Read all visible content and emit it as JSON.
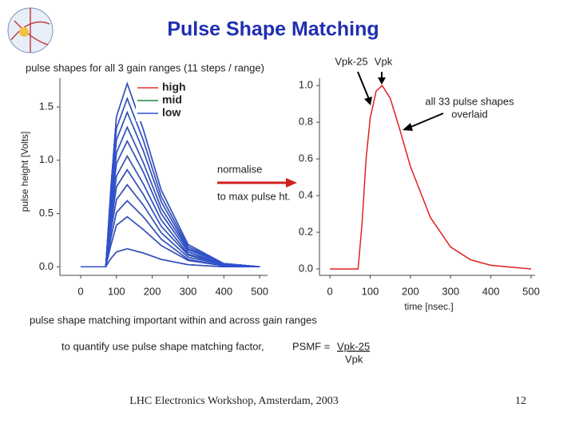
{
  "title": "Pulse Shape Matching",
  "notes": [
    "pulse shape matching important within and across gain ranges",
    "to quantify use pulse shape matching factor,"
  ],
  "psmf": {
    "label": "PSMF =",
    "numerator": "Vpk-25",
    "denominator": "Vpk"
  },
  "footer": "LHC Electronics Workshop, Amsterdam, 2003",
  "page_number": 12,
  "chart_data": [
    {
      "type": "line",
      "subtitle": "pulse shapes for all 3 gain ranges (11 steps / range)",
      "ylabel": "pulse height [Volts]",
      "annotations": [
        "normalise",
        "to max pulse ht."
      ],
      "x": [
        0,
        70,
        85,
        100,
        130,
        175,
        225,
        300,
        400,
        500
      ],
      "xlim": [
        -58,
        522
      ],
      "xticks": [
        0,
        100,
        200,
        300,
        400,
        500
      ],
      "ylim": [
        -0.08,
        1.77
      ],
      "yticks": [
        {
          "value": 0,
          "label": "0.0"
        },
        {
          "value": 0.5,
          "label": "0.5"
        },
        {
          "value": 1,
          "label": "1.0"
        },
        {
          "value": 1.5,
          "label": "1.5"
        }
      ],
      "grid": false,
      "legend": "top",
      "series": [
        {
          "name": "high",
          "color": "#e03030",
          "values": [
            [
              0,
              0,
              0.77,
              1.41,
              1.72,
              1.29,
              0.72,
              0.21,
              0.03,
              0
            ],
            [
              0,
              0,
              0.71,
              1.3,
              1.58,
              1.19,
              0.66,
              0.19,
              0.03,
              0
            ],
            [
              0,
              0,
              0.65,
              1.19,
              1.45,
              1.09,
              0.61,
              0.17,
              0.03,
              0
            ],
            [
              0,
              0,
              0.59,
              1.07,
              1.31,
              0.98,
              0.55,
              0.16,
              0.03,
              0
            ],
            [
              0,
              0,
              0.53,
              0.97,
              1.18,
              0.89,
              0.5,
              0.14,
              0.02,
              0
            ],
            [
              0,
              0,
              0.47,
              0.85,
              1.04,
              0.78,
              0.44,
              0.12,
              0.02,
              0
            ],
            [
              0,
              0,
              0.41,
              0.75,
              0.91,
              0.68,
              0.38,
              0.11,
              0.02,
              0
            ],
            [
              0,
              0,
              0.35,
              0.63,
              0.77,
              0.58,
              0.32,
              0.09,
              0.02,
              0
            ],
            [
              0,
              0,
              0.28,
              0.51,
              0.62,
              0.47,
              0.26,
              0.07,
              0.01,
              0
            ],
            [
              0,
              0,
              0.21,
              0.39,
              0.47,
              0.35,
              0.2,
              0.06,
              0.01,
              0
            ],
            [
              0,
              0,
              0.08,
              0.14,
              0.17,
              0.13,
              0.07,
              0.02,
              0,
              0
            ]
          ]
        },
        {
          "name": "mid",
          "color": "#1a8a3a",
          "values": [
            [
              0,
              0,
              0.77,
              1.41,
              1.72,
              1.29,
              0.72,
              0.21,
              0.03,
              0
            ],
            [
              0,
              0,
              0.71,
              1.3,
              1.58,
              1.19,
              0.66,
              0.19,
              0.03,
              0
            ],
            [
              0,
              0,
              0.65,
              1.19,
              1.45,
              1.09,
              0.61,
              0.17,
              0.03,
              0
            ],
            [
              0,
              0,
              0.59,
              1.07,
              1.31,
              0.98,
              0.55,
              0.16,
              0.03,
              0
            ],
            [
              0,
              0,
              0.53,
              0.97,
              1.18,
              0.89,
              0.5,
              0.14,
              0.02,
              0
            ],
            [
              0,
              0,
              0.47,
              0.85,
              1.04,
              0.78,
              0.44,
              0.12,
              0.02,
              0
            ],
            [
              0,
              0,
              0.41,
              0.75,
              0.91,
              0.68,
              0.38,
              0.11,
              0.02,
              0
            ],
            [
              0,
              0,
              0.35,
              0.63,
              0.77,
              0.58,
              0.32,
              0.09,
              0.02,
              0
            ],
            [
              0,
              0,
              0.28,
              0.51,
              0.62,
              0.47,
              0.26,
              0.07,
              0.01,
              0
            ],
            [
              0,
              0,
              0.21,
              0.39,
              0.47,
              0.35,
              0.2,
              0.06,
              0.01,
              0
            ],
            [
              0,
              0,
              0.08,
              0.14,
              0.17,
              0.13,
              0.07,
              0.02,
              0,
              0
            ]
          ]
        },
        {
          "name": "low",
          "color": "#3050d0",
          "values": [
            [
              0,
              0,
              0.77,
              1.41,
              1.72,
              1.29,
              0.72,
              0.21,
              0.03,
              0
            ],
            [
              0,
              0,
              0.71,
              1.3,
              1.58,
              1.19,
              0.66,
              0.19,
              0.03,
              0
            ],
            [
              0,
              0,
              0.65,
              1.19,
              1.45,
              1.09,
              0.61,
              0.17,
              0.03,
              0
            ],
            [
              0,
              0,
              0.59,
              1.07,
              1.31,
              0.98,
              0.55,
              0.16,
              0.03,
              0
            ],
            [
              0,
              0,
              0.53,
              0.97,
              1.18,
              0.89,
              0.5,
              0.14,
              0.02,
              0
            ],
            [
              0,
              0,
              0.47,
              0.85,
              1.04,
              0.78,
              0.44,
              0.12,
              0.02,
              0
            ],
            [
              0,
              0,
              0.41,
              0.75,
              0.91,
              0.68,
              0.38,
              0.11,
              0.02,
              0
            ],
            [
              0,
              0,
              0.35,
              0.63,
              0.77,
              0.58,
              0.32,
              0.09,
              0.02,
              0
            ],
            [
              0,
              0,
              0.28,
              0.51,
              0.62,
              0.47,
              0.26,
              0.07,
              0.01,
              0
            ],
            [
              0,
              0,
              0.21,
              0.39,
              0.47,
              0.35,
              0.2,
              0.06,
              0.01,
              0
            ],
            [
              0,
              0,
              0.08,
              0.14,
              0.17,
              0.13,
              0.07,
              0.02,
              0,
              0
            ]
          ]
        }
      ]
    },
    {
      "type": "line",
      "xlabel": "time [nsec.]",
      "annotations": [
        "Vpk-25",
        "Vpk",
        "all 33 pulse shapes",
        "overlaid"
      ],
      "x": [
        0,
        70,
        80,
        90,
        100,
        115,
        130,
        150,
        175,
        200,
        250,
        300,
        350,
        400,
        500
      ],
      "xlim": [
        -26,
        510
      ],
      "xticks": [
        0,
        100,
        200,
        300,
        400,
        500
      ],
      "ylim": [
        -0.035,
        1.04
      ],
      "yticks": [
        {
          "value": 0,
          "label": "0.0"
        },
        {
          "value": 0.2,
          "label": "0.2"
        },
        {
          "value": 0.4,
          "label": "0.4"
        },
        {
          "value": 0.6,
          "label": "0.6"
        },
        {
          "value": 0.8,
          "label": "0.8"
        },
        {
          "value": 1,
          "label": "1.0"
        }
      ],
      "grid": false,
      "series": [
        {
          "name": "all",
          "color": "#e02020",
          "values": [
            0,
            0,
            0.25,
            0.6,
            0.82,
            0.97,
            1.0,
            0.93,
            0.75,
            0.56,
            0.28,
            0.12,
            0.05,
            0.02,
            0
          ]
        }
      ]
    }
  ]
}
